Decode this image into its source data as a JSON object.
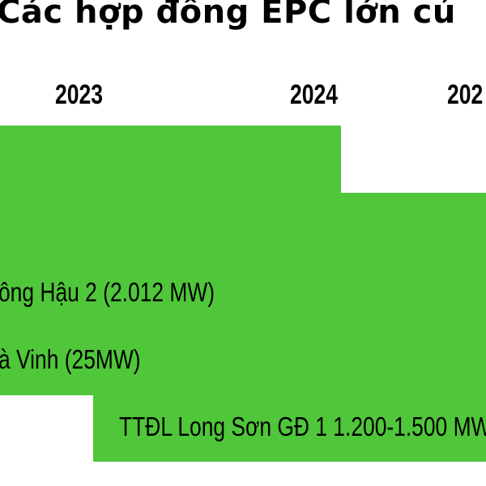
{
  "chart_data": {
    "type": "gantt",
    "title": "Các hợp đồng EPC lớn củ",
    "timeline_labels": [
      "2023",
      "2024",
      "202"
    ],
    "bar_color": "#50c63a",
    "bars": [
      {
        "label": "",
        "start_year": 2022.5,
        "end_year": 2024.1
      },
      {
        "label": "",
        "start_year": 2022.5,
        "end_year": 2025.5
      },
      {
        "label": "ông Hậu 2 (2.012 MW)",
        "start_year": 2022.5,
        "end_year": 2025.5
      },
      {
        "label": "à Vinh (25MW)",
        "start_year": 2022.5,
        "end_year": 2025.5
      },
      {
        "label": "TTĐL Long Sơn GĐ 1 1.200-1.500 MW",
        "start_year": 2023.05,
        "end_year": 2025.5
      }
    ]
  }
}
